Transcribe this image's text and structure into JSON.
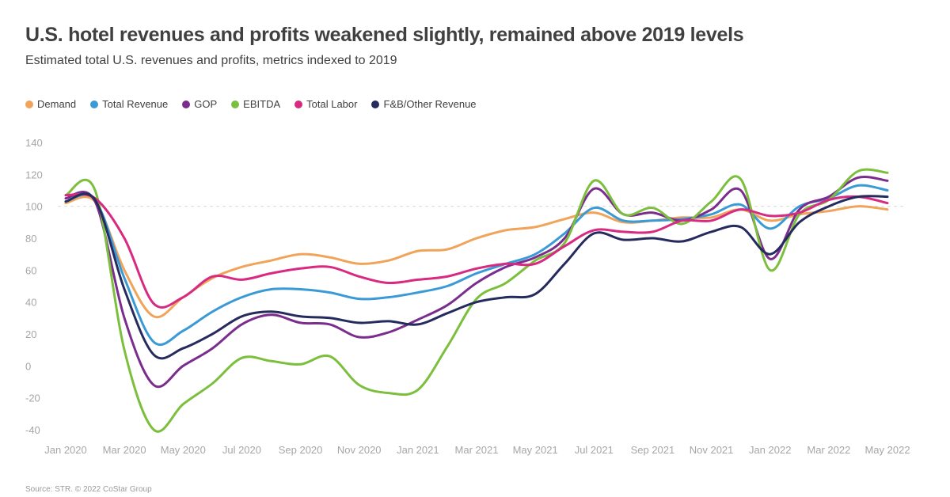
{
  "title": "U.S. hotel revenues and profits weakened slightly, remained above 2019 levels",
  "subtitle": "Estimated total U.S. revenues and profits, metrics indexed to 2019",
  "source": "Source: STR. © 2022 CoStar Group",
  "chart_data": {
    "type": "line",
    "title": "U.S. hotel revenues and profits weakened slightly, remained above 2019 levels",
    "subtitle": "Estimated total U.S. revenues and profits, metrics indexed to 2019",
    "xlabel": "",
    "ylabel": "",
    "ylim": [
      -40,
      140
    ],
    "y_ticks": [
      140,
      120,
      100,
      80,
      60,
      40,
      20,
      0,
      -20,
      -40
    ],
    "x_tick_labels": [
      "Jan 2020",
      "Mar 2020",
      "May 2020",
      "Jul 2020",
      "Sep 2020",
      "Nov 2020",
      "Jan 2021",
      "Mar 2021",
      "May 2021",
      "Jul 2021",
      "Sep 2021",
      "Nov 2021",
      "Jan 2022",
      "Mar 2022",
      "May 2022"
    ],
    "x": [
      "Jan 2020",
      "Feb 2020",
      "Mar 2020",
      "Apr 2020",
      "May 2020",
      "Jun 2020",
      "Jul 2020",
      "Aug 2020",
      "Sep 2020",
      "Oct 2020",
      "Nov 2020",
      "Dec 2020",
      "Jan 2021",
      "Feb 2021",
      "Mar 2021",
      "Apr 2021",
      "May 2021",
      "Jun 2021",
      "Jul 2021",
      "Aug 2021",
      "Sep 2021",
      "Oct 2021",
      "Nov 2021",
      "Dec 2021",
      "Jan 2022",
      "Feb 2022",
      "Mar 2022",
      "Apr 2022",
      "May 2022"
    ],
    "reference_line": 100,
    "grid": false,
    "legend_position": "top-left",
    "series": [
      {
        "name": "Demand",
        "color": "#F0A45A",
        "values": [
          102,
          103,
          60,
          31,
          43,
          55,
          62,
          66,
          70,
          68,
          64,
          66,
          72,
          73,
          80,
          85,
          87,
          92,
          96,
          90,
          91,
          93,
          93,
          98,
          91,
          95,
          97,
          100,
          98
        ]
      },
      {
        "name": "Total Revenue",
        "color": "#3A9AD6",
        "values": [
          103,
          104,
          55,
          15,
          22,
          34,
          43,
          48,
          48,
          46,
          42,
          43,
          46,
          50,
          58,
          64,
          70,
          83,
          99,
          91,
          91,
          92,
          95,
          101,
          86,
          100,
          105,
          113,
          110
        ]
      },
      {
        "name": "GOP",
        "color": "#7B2D8E",
        "values": [
          105,
          103,
          30,
          -12,
          0,
          11,
          26,
          32,
          27,
          26,
          18,
          21,
          29,
          38,
          52,
          62,
          68,
          80,
          111,
          95,
          96,
          91,
          98,
          110,
          67,
          98,
          106,
          118,
          116
        ]
      },
      {
        "name": "EBITDA",
        "color": "#7BBF3D",
        "values": [
          107,
          110,
          10,
          -40,
          -24,
          -11,
          5,
          3,
          1,
          6,
          -12,
          -17,
          -15,
          12,
          42,
          52,
          66,
          77,
          116,
          95,
          99,
          89,
          103,
          117,
          60,
          95,
          104,
          122,
          121
        ]
      },
      {
        "name": "Total Labor",
        "color": "#D72A80",
        "values": [
          107,
          105,
          80,
          39,
          43,
          56,
          54,
          58,
          61,
          62,
          56,
          52,
          54,
          56,
          61,
          64,
          64,
          75,
          85,
          84,
          84,
          91,
          91,
          98,
          94,
          96,
          104,
          106,
          102
        ]
      },
      {
        "name": "F&B/Other Revenue",
        "color": "#262B5E",
        "values": [
          103,
          104,
          48,
          7,
          11,
          20,
          31,
          34,
          31,
          30,
          27,
          28,
          26,
          33,
          40,
          43,
          45,
          64,
          83,
          79,
          80,
          78,
          84,
          87,
          70,
          90,
          100,
          106,
          106
        ]
      }
    ]
  }
}
